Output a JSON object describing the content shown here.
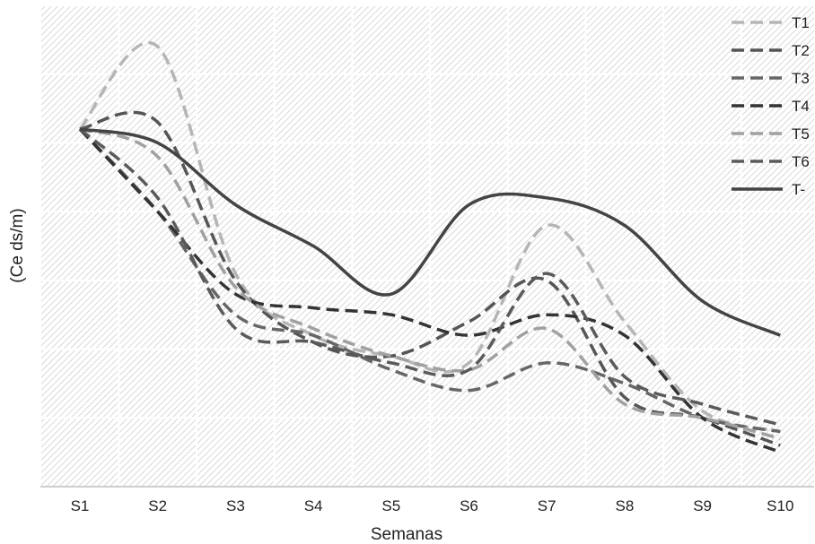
{
  "chart_data": {
    "type": "line",
    "xlabel": "Semanas",
    "ylabel": "(Ce ds/m)",
    "categories": [
      "S1",
      "S2",
      "S3",
      "S4",
      "S5",
      "S6",
      "S7",
      "S8",
      "S9",
      "S10"
    ],
    "ylim": [
      0,
      7
    ],
    "grid": true,
    "legend_position": "top-right",
    "series": [
      {
        "name": "T1",
        "color": "#b5b5b5",
        "dash": true,
        "values": [
          5.2,
          6.4,
          3.1,
          2.2,
          1.9,
          1.8,
          3.8,
          2.4,
          1.1,
          0.8
        ]
      },
      {
        "name": "T2",
        "color": "#555555",
        "dash": true,
        "values": [
          5.2,
          5.3,
          3.0,
          2.1,
          1.9,
          2.4,
          3.0,
          1.3,
          1.0,
          0.6
        ]
      },
      {
        "name": "T3",
        "color": "#666666",
        "dash": true,
        "values": [
          5.2,
          4.0,
          2.5,
          2.2,
          1.7,
          1.4,
          1.8,
          1.5,
          1.0,
          0.8
        ]
      },
      {
        "name": "T4",
        "color": "#333333",
        "dash": true,
        "values": [
          5.2,
          4.0,
          2.8,
          2.6,
          2.5,
          2.2,
          2.5,
          2.2,
          1.0,
          0.5
        ]
      },
      {
        "name": "T5",
        "color": "#a0a0a0",
        "dash": true,
        "values": [
          5.2,
          4.8,
          2.9,
          2.3,
          1.9,
          1.7,
          2.3,
          1.2,
          1.0,
          0.7
        ]
      },
      {
        "name": "T6",
        "color": "#5a5a5a",
        "dash": true,
        "values": [
          5.2,
          4.2,
          2.3,
          2.1,
          1.8,
          1.7,
          3.1,
          1.6,
          1.2,
          0.9
        ]
      },
      {
        "name": "T-",
        "color": "#444444",
        "dash": false,
        "values": [
          5.2,
          5.0,
          4.1,
          3.5,
          2.8,
          4.1,
          4.2,
          3.8,
          2.7,
          2.2
        ]
      }
    ]
  }
}
